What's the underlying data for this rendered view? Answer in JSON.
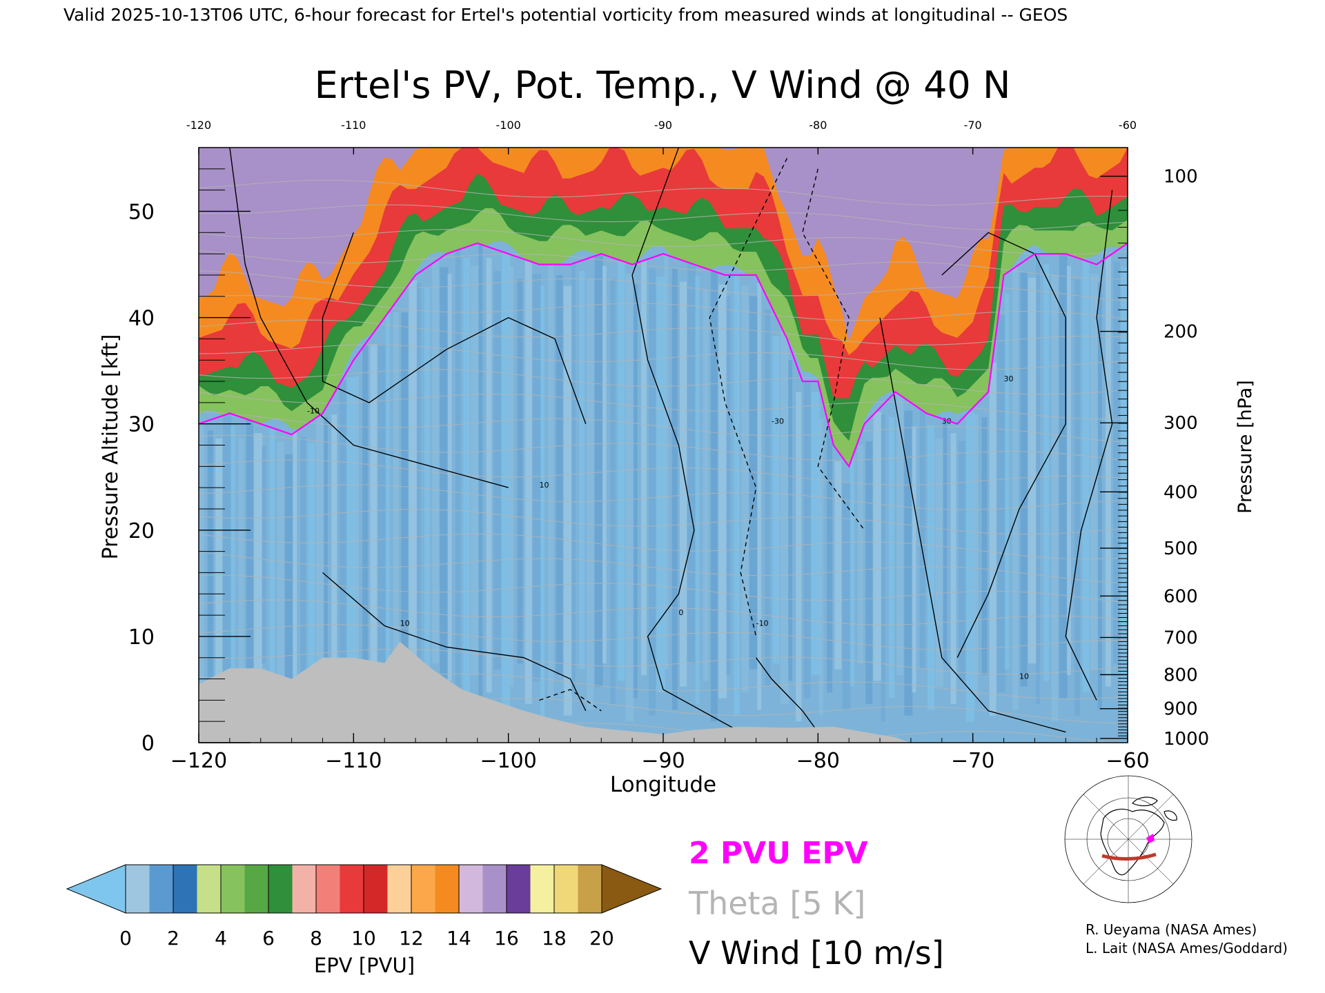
{
  "header": {
    "valid_line": "Valid 2025-10-13T06 UTC, 6-hour forecast for Ertel's potential vorticity from measured winds at longitudinal -- GEOS"
  },
  "chart_data": {
    "type": "heatmap",
    "title": "Ertel's PV, Pot. Temp., V Wind @ 40 N",
    "xlabel": "Longitude",
    "ylabel_left": "Pressure Altitude [kft]",
    "ylabel_right": "Pressure [hPa]",
    "xlim": [
      -120,
      -60
    ],
    "ylim": [
      0,
      56
    ],
    "x_ticks": [
      -120,
      -110,
      -100,
      -90,
      -80,
      -70,
      -60
    ],
    "x_tick_labels": [
      "−120",
      "−110",
      "−100",
      "−90",
      "−80",
      "−70",
      "−60"
    ],
    "top_tick_labels": [
      "-120",
      "-110",
      "-100",
      "-90",
      "-80",
      "-70",
      "-60"
    ],
    "y_ticks": [
      0,
      10,
      20,
      30,
      40,
      50
    ],
    "pressure_ticks": [
      {
        "hPa": 100,
        "kft": 53.3,
        "label": "100"
      },
      {
        "hPa": 200,
        "kft": 38.7,
        "label": "200"
      },
      {
        "hPa": 300,
        "kft": 30.1,
        "label": "300"
      },
      {
        "hPa": 400,
        "kft": 23.6,
        "label": "400"
      },
      {
        "hPa": 500,
        "kft": 18.3,
        "label": "500"
      },
      {
        "hPa": 600,
        "kft": 13.8,
        "label": "600"
      },
      {
        "hPa": 700,
        "kft": 9.9,
        "label": "700"
      },
      {
        "hPa": 800,
        "kft": 6.4,
        "label": "800"
      },
      {
        "hPa": 900,
        "kft": 3.2,
        "label": "900"
      },
      {
        "hPa": 1000,
        "kft": 0.4,
        "label": "1000"
      }
    ],
    "colorbar": {
      "label": "EPV [PVU]",
      "tick_labels": [
        "0",
        "2",
        "4",
        "6",
        "8",
        "10",
        "12",
        "14",
        "16",
        "18",
        "20"
      ],
      "under_color": "#7fc6ee",
      "over_color": "#8a5a12",
      "colors": [
        "#9fc6e0",
        "#5a9ad0",
        "#2e73b6",
        "#c6e08a",
        "#86c25e",
        "#56a844",
        "#2f8f3a",
        "#f3b2a8",
        "#f28078",
        "#e83a3a",
        "#d42828",
        "#fdd09a",
        "#fca84a",
        "#f58b20",
        "#d2b8dc",
        "#a890c8",
        "#6a3d9a",
        "#f4f0a0",
        "#f0d878",
        "#c8a048"
      ]
    },
    "pv_field": {
      "tropopause_2pvu_kft": [
        [
          -120,
          30
        ],
        [
          -118,
          31
        ],
        [
          -116,
          30
        ],
        [
          -114,
          29
        ],
        [
          -112,
          31
        ],
        [
          -110,
          36
        ],
        [
          -108,
          40
        ],
        [
          -106,
          44
        ],
        [
          -104,
          46
        ],
        [
          -102,
          47
        ],
        [
          -100,
          46
        ],
        [
          -98,
          45
        ],
        [
          -96,
          45
        ],
        [
          -94,
          46
        ],
        [
          -92,
          45
        ],
        [
          -90,
          46
        ],
        [
          -88,
          45
        ],
        [
          -86,
          44
        ],
        [
          -84,
          44
        ],
        [
          -82,
          38
        ],
        [
          -81,
          34
        ],
        [
          -80,
          34
        ],
        [
          -79,
          28
        ],
        [
          -78,
          26
        ],
        [
          -77,
          30
        ],
        [
          -75,
          33
        ],
        [
          -73,
          31
        ],
        [
          -71,
          30
        ],
        [
          -69,
          33
        ],
        [
          -68,
          44
        ],
        [
          -66,
          46
        ],
        [
          -64,
          46
        ],
        [
          -62,
          45
        ],
        [
          -60,
          47
        ]
      ],
      "stratosphere_bands": [
        {
          "pvu": 3,
          "color": "#86c25e"
        },
        {
          "pvu": 5,
          "color": "#2f8f3a"
        },
        {
          "pvu": 8,
          "color": "#e83a3a"
        },
        {
          "pvu": 12,
          "color": "#f58b20"
        },
        {
          "pvu": 16,
          "color": "#a890c8"
        }
      ],
      "terrain_kft": [
        [
          -120,
          5.5
        ],
        [
          -118,
          7
        ],
        [
          -116,
          7
        ],
        [
          -114,
          6
        ],
        [
          -112,
          8
        ],
        [
          -110,
          8
        ],
        [
          -108,
          7.5
        ],
        [
          -107,
          9.5
        ],
        [
          -105,
          7
        ],
        [
          -103,
          5
        ],
        [
          -101,
          4
        ],
        [
          -99,
          3
        ],
        [
          -97,
          2.2
        ],
        [
          -95,
          1.5
        ],
        [
          -93,
          1.2
        ],
        [
          -90,
          0.8
        ],
        [
          -88,
          1.2
        ],
        [
          -85,
          1.5
        ],
        [
          -82,
          1.4
        ],
        [
          -79,
          1.5
        ],
        [
          -77,
          1
        ],
        [
          -75,
          0.5
        ],
        [
          -74,
          0
        ]
      ]
    },
    "theta_label": "Theta [5 K]",
    "v_wind_label": "V Wind [10 m/s]",
    "contour_labels": [
      "-10",
      "10",
      "30",
      "-30",
      "0",
      "10",
      "30",
      "-10",
      "10"
    ],
    "series": [
      {
        "name": "2 PVU EPV",
        "color": "#ff00ff"
      },
      {
        "name": "Theta [5 K]",
        "color": "#b0b0b0"
      },
      {
        "name": "V Wind [10 m/s]",
        "color": "#000000"
      }
    ]
  },
  "legend": {
    "pv2": "2 PVU EPV",
    "theta": "Theta [5 K]",
    "vwind": "V Wind [10 m/s]"
  },
  "credits": {
    "line1": "R. Ueyama (NASA Ames)",
    "line2": "L. Lait (NASA Ames/Goddard)"
  },
  "colors": {
    "pv2": "#ff00ff",
    "theta": "#b4b4b4",
    "track": "#c0392b",
    "terrain": "#bebebe"
  }
}
